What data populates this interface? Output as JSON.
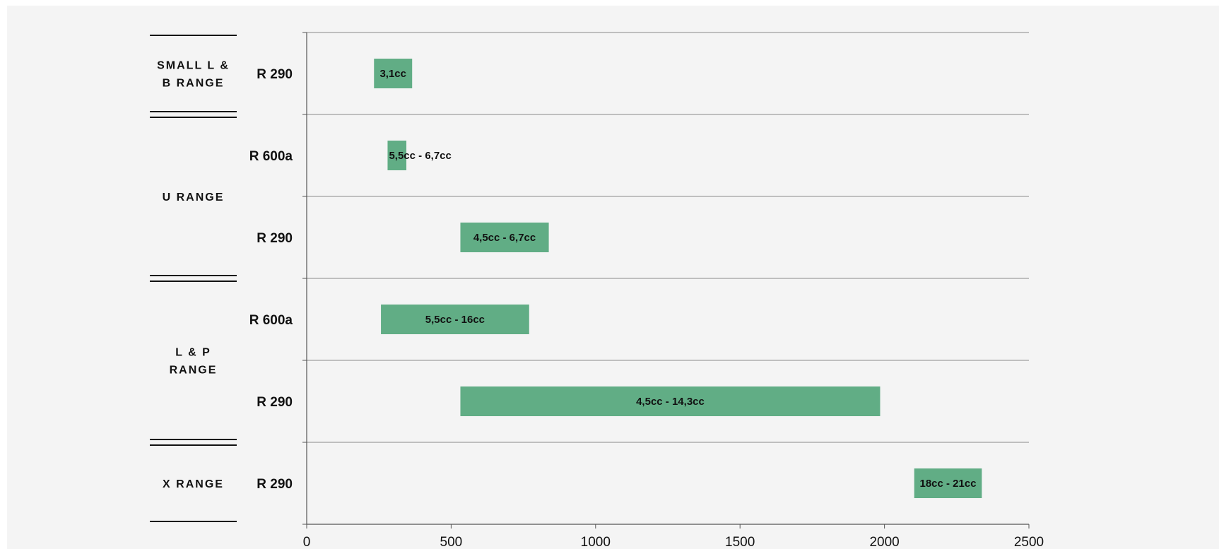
{
  "chart_data": {
    "type": "bar",
    "orientation": "horizontal-range",
    "title": "",
    "xlabel": "",
    "ylabel": "",
    "xlim": [
      0,
      2500
    ],
    "x_ticks": [
      0,
      500,
      1000,
      1500,
      2000,
      2500
    ],
    "grid": "horizontal separators",
    "bar_color": "#61ad85",
    "groups": [
      {
        "label_lines": [
          "SMALL L &",
          "B RANGE"
        ],
        "rows": [
          0
        ]
      },
      {
        "label_lines": [
          "U RANGE"
        ],
        "rows": [
          1,
          2
        ]
      },
      {
        "label_lines": [
          "L & P",
          "RANGE"
        ],
        "rows": [
          3,
          4
        ]
      },
      {
        "label_lines": [
          "X RANGE"
        ],
        "rows": [
          5
        ]
      }
    ],
    "rows": [
      {
        "category": "R 290",
        "start": 233,
        "end": 365,
        "label": "3,1cc"
      },
      {
        "category": "R 600a",
        "start": 280,
        "end": 345,
        "label": "5,5cc  - 6,7cc"
      },
      {
        "category": "R 290",
        "start": 532,
        "end": 838,
        "label": "4,5cc  - 6,7cc"
      },
      {
        "category": "R 600a",
        "start": 257,
        "end": 770,
        "label": "5,5cc  - 16cc"
      },
      {
        "category": "R 290",
        "start": 532,
        "end": 1985,
        "label": "4,5cc  - 14,3cc"
      },
      {
        "category": "R 290",
        "start": 2103,
        "end": 2337,
        "label": "18cc  - 21cc"
      }
    ]
  }
}
